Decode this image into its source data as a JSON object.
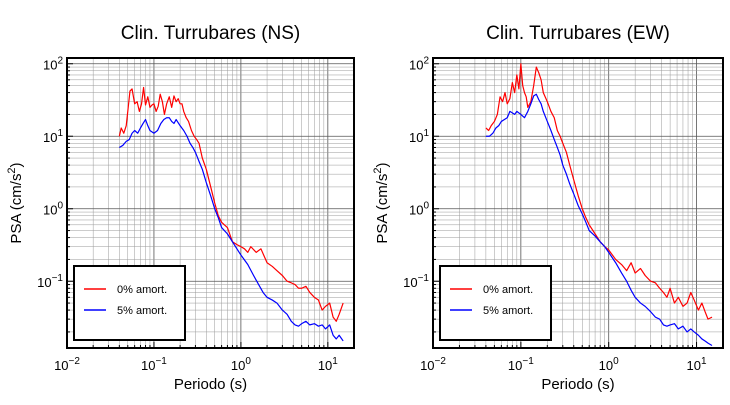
{
  "chart_data": [
    {
      "type": "line",
      "title": "Clin. Turrubares (NS)",
      "xlabel": "Periodo (s)",
      "ylabel": {
        "main": "PSA (cm/s",
        "sup": "2",
        "close": ")"
      },
      "xscale": "log",
      "yscale": "log",
      "xlim": [
        0.01,
        20
      ],
      "ylim": [
        0.012,
        120
      ],
      "grid": true,
      "legend_position": "bottom-left",
      "x_ticks": [
        {
          "base": "10",
          "exp": "−2"
        },
        {
          "base": "10",
          "exp": "−1"
        },
        {
          "base": "10",
          "exp": "0"
        },
        {
          "base": "10",
          "exp": "1"
        }
      ],
      "y_ticks": [
        {
          "base": "10",
          "exp": "−1"
        },
        {
          "base": "10",
          "exp": "0"
        },
        {
          "base": "10",
          "exp": "1"
        },
        {
          "base": "10",
          "exp": "2"
        }
      ],
      "series": [
        {
          "name": "0% amort.",
          "color": "#ff0000",
          "x": [
            0.04,
            0.042,
            0.045,
            0.048,
            0.05,
            0.053,
            0.056,
            0.06,
            0.064,
            0.068,
            0.072,
            0.076,
            0.08,
            0.085,
            0.09,
            0.095,
            0.1,
            0.106,
            0.112,
            0.118,
            0.125,
            0.132,
            0.14,
            0.15,
            0.16,
            0.17,
            0.18,
            0.19,
            0.2,
            0.21,
            0.22,
            0.235,
            0.25,
            0.27,
            0.29,
            0.31,
            0.33,
            0.36,
            0.4,
            0.45,
            0.5,
            0.55,
            0.6,
            0.7,
            0.8,
            0.9,
            1.0,
            1.1,
            1.2,
            1.3,
            1.5,
            1.7,
            2.0,
            2.3,
            2.6,
            3.0,
            3.4,
            3.8,
            4.2,
            4.6,
            5.0,
            5.6,
            6.2,
            7.0,
            7.8,
            8.6,
            9.4,
            10.5,
            11.5,
            12.5,
            13.5,
            15.0
          ],
          "values": [
            10,
            13,
            11,
            14,
            22,
            42,
            45,
            28,
            30,
            22,
            28,
            47,
            27,
            35,
            25,
            27,
            28,
            22,
            26,
            38,
            30,
            20,
            28,
            35,
            25,
            36,
            30,
            33,
            28,
            28,
            22,
            18,
            16,
            12,
            10,
            9,
            8,
            5,
            3.5,
            2.0,
            1.2,
            0.8,
            0.65,
            0.55,
            0.35,
            0.32,
            0.3,
            0.28,
            0.25,
            0.3,
            0.25,
            0.28,
            0.18,
            0.16,
            0.14,
            0.12,
            0.1,
            0.095,
            0.09,
            0.08,
            0.08,
            0.085,
            0.07,
            0.06,
            0.055,
            0.04,
            0.045,
            0.05,
            0.032,
            0.028,
            0.035,
            0.05
          ]
        },
        {
          "name": "5% amort.",
          "color": "#0000ff",
          "x": [
            0.04,
            0.044,
            0.048,
            0.052,
            0.056,
            0.06,
            0.065,
            0.07,
            0.075,
            0.08,
            0.085,
            0.09,
            0.1,
            0.11,
            0.12,
            0.13,
            0.14,
            0.15,
            0.16,
            0.17,
            0.18,
            0.2,
            0.22,
            0.24,
            0.26,
            0.28,
            0.3,
            0.33,
            0.36,
            0.4,
            0.45,
            0.5,
            0.55,
            0.6,
            0.7,
            0.8,
            0.9,
            1.0,
            1.2,
            1.4,
            1.6,
            1.8,
            2.0,
            2.3,
            2.6,
            3.0,
            3.4,
            3.8,
            4.2,
            4.6,
            5.0,
            5.6,
            6.2,
            7.0,
            7.8,
            8.6,
            9.4,
            10.5,
            11.5,
            12.5,
            13.5,
            15.0
          ],
          "values": [
            7,
            7.5,
            8.5,
            9,
            11,
            12,
            11,
            13,
            15,
            17,
            14,
            12,
            11,
            12,
            15,
            17,
            18,
            18,
            16,
            15,
            17,
            14,
            12,
            10,
            8,
            7,
            6,
            4.5,
            3.5,
            2.3,
            1.5,
            1.0,
            0.75,
            0.55,
            0.45,
            0.35,
            0.28,
            0.23,
            0.17,
            0.12,
            0.09,
            0.07,
            0.06,
            0.055,
            0.05,
            0.04,
            0.035,
            0.028,
            0.025,
            0.024,
            0.026,
            0.028,
            0.025,
            0.026,
            0.024,
            0.025,
            0.022,
            0.025,
            0.018,
            0.016,
            0.018,
            0.015
          ]
        }
      ]
    },
    {
      "type": "line",
      "title": "Clin. Turrubares (EW)",
      "xlabel": "Periodo (s)",
      "ylabel": {
        "main": "PSA (cm/s",
        "sup": "2",
        "close": ")"
      },
      "xscale": "log",
      "yscale": "log",
      "xlim": [
        0.01,
        20
      ],
      "ylim": [
        0.012,
        120
      ],
      "grid": true,
      "legend_position": "bottom-left",
      "x_ticks": [
        {
          "base": "10",
          "exp": "−2"
        },
        {
          "base": "10",
          "exp": "−1"
        },
        {
          "base": "10",
          "exp": "0"
        },
        {
          "base": "10",
          "exp": "1"
        }
      ],
      "y_ticks": [
        {
          "base": "10",
          "exp": "−1"
        },
        {
          "base": "10",
          "exp": "0"
        },
        {
          "base": "10",
          "exp": "1"
        },
        {
          "base": "10",
          "exp": "2"
        }
      ],
      "series": [
        {
          "name": "0% amort.",
          "color": "#ff0000",
          "x": [
            0.04,
            0.043,
            0.046,
            0.05,
            0.054,
            0.058,
            0.062,
            0.066,
            0.07,
            0.075,
            0.08,
            0.085,
            0.09,
            0.095,
            0.1,
            0.105,
            0.11,
            0.115,
            0.12,
            0.13,
            0.14,
            0.15,
            0.16,
            0.17,
            0.18,
            0.2,
            0.22,
            0.24,
            0.26,
            0.28,
            0.3,
            0.33,
            0.36,
            0.4,
            0.45,
            0.5,
            0.55,
            0.6,
            0.7,
            0.8,
            0.9,
            1.0,
            1.2,
            1.4,
            1.6,
            1.8,
            2.0,
            2.3,
            2.6,
            3.0,
            3.4,
            3.8,
            4.2,
            4.6,
            5.0,
            5.6,
            6.2,
            7.0,
            7.8,
            8.6,
            9.4,
            10.5,
            11.5,
            12.5,
            13.5,
            15.0
          ],
          "values": [
            13,
            12,
            14,
            16,
            20,
            35,
            30,
            40,
            28,
            33,
            55,
            40,
            70,
            45,
            100,
            50,
            40,
            35,
            25,
            30,
            50,
            90,
            75,
            60,
            40,
            30,
            22,
            18,
            12,
            10,
            8,
            6,
            4,
            2.5,
            1.5,
            1.0,
            0.75,
            0.6,
            0.45,
            0.35,
            0.3,
            0.27,
            0.2,
            0.17,
            0.14,
            0.18,
            0.13,
            0.15,
            0.12,
            0.1,
            0.095,
            0.08,
            0.07,
            0.06,
            0.08,
            0.05,
            0.06,
            0.045,
            0.05,
            0.07,
            0.055,
            0.04,
            0.05,
            0.038,
            0.03,
            0.032
          ]
        },
        {
          "name": "5% amort.",
          "color": "#0000ff",
          "x": [
            0.04,
            0.044,
            0.048,
            0.052,
            0.056,
            0.06,
            0.065,
            0.07,
            0.075,
            0.08,
            0.085,
            0.09,
            0.1,
            0.11,
            0.12,
            0.13,
            0.14,
            0.15,
            0.16,
            0.17,
            0.18,
            0.2,
            0.22,
            0.24,
            0.26,
            0.28,
            0.3,
            0.33,
            0.36,
            0.4,
            0.45,
            0.5,
            0.55,
            0.6,
            0.7,
            0.8,
            0.9,
            1.0,
            1.2,
            1.4,
            1.6,
            1.8,
            2.0,
            2.3,
            2.6,
            3.0,
            3.4,
            3.8,
            4.2,
            4.6,
            5.0,
            5.6,
            6.2,
            7.0,
            7.8,
            8.6,
            9.4,
            10.5,
            11.5,
            12.5,
            13.5,
            15.0
          ],
          "values": [
            10,
            10,
            11,
            13,
            14,
            16,
            17,
            18,
            22,
            21,
            20,
            22,
            20,
            18,
            22,
            28,
            36,
            38,
            32,
            28,
            22,
            16,
            12,
            9,
            7,
            5.5,
            4,
            3,
            2.2,
            1.6,
            1.1,
            0.85,
            0.65,
            0.5,
            0.42,
            0.35,
            0.3,
            0.25,
            0.18,
            0.13,
            0.1,
            0.075,
            0.06,
            0.05,
            0.045,
            0.038,
            0.032,
            0.03,
            0.025,
            0.024,
            0.025,
            0.026,
            0.022,
            0.024,
            0.02,
            0.022,
            0.02,
            0.018,
            0.016,
            0.015,
            0.014,
            0.013
          ]
        }
      ]
    }
  ]
}
